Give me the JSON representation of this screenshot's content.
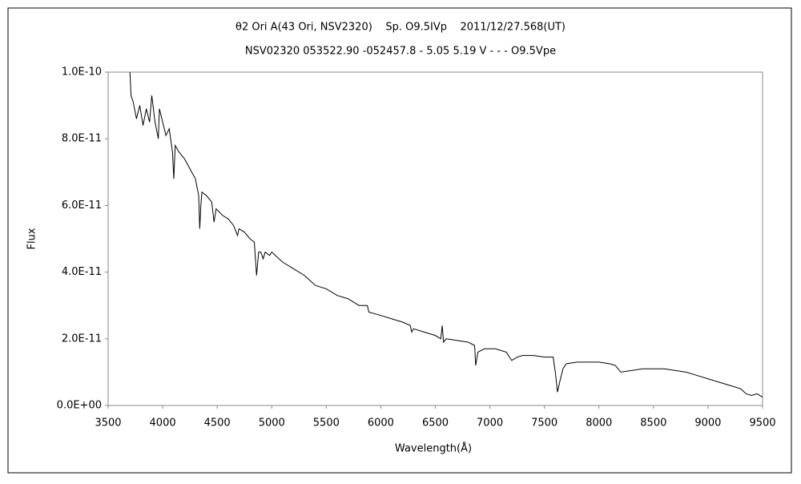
{
  "chart_data": {
    "type": "line",
    "title": "θ2 Ori A(43 Ori, NSV2320)    Sp. O9.5IVp    2011/12/27.568(UT)",
    "subtitle": "NSV02320 053522.90 -052457.8 - 5.05 5.19 V - - - O9.5Vpe",
    "x_label": "Wavelength(Å)",
    "y_label": "Flux",
    "xlim": [
      3500,
      9500
    ],
    "xticks": [
      3500,
      4000,
      4500,
      5000,
      5500,
      6000,
      6500,
      7000,
      7500,
      8000,
      8500,
      9000,
      9500
    ],
    "ylim": [
      0,
      1e-10
    ],
    "yticks": [
      {
        "value": 0,
        "label": "0.0E+00"
      },
      {
        "value": 2e-11,
        "label": "2.0E-11"
      },
      {
        "value": 4e-11,
        "label": "4.0E-11"
      },
      {
        "value": 6e-11,
        "label": "6.0E-11"
      },
      {
        "value": 8e-11,
        "label": "8.0E-11"
      },
      {
        "value": 1e-10,
        "label": "1.0E-10"
      }
    ],
    "grid": false,
    "series": [
      {
        "color": "#000000",
        "x": [
          3700,
          3710,
          3730,
          3760,
          3790,
          3820,
          3850,
          3880,
          3900,
          3930,
          3960,
          3970,
          4000,
          4030,
          4060,
          4090,
          4102,
          4115,
          4150,
          4200,
          4250,
          4300,
          4330,
          4340,
          4350,
          4360,
          4400,
          4450,
          4471,
          4490,
          4550,
          4600,
          4650,
          4686,
          4700,
          4750,
          4800,
          4840,
          4861,
          4880,
          4900,
          4921,
          4940,
          4980,
          5000,
          5100,
          5200,
          5300,
          5400,
          5500,
          5600,
          5700,
          5800,
          5876,
          5890,
          6000,
          6100,
          6200,
          6270,
          6284,
          6300,
          6400,
          6500,
          6550,
          6563,
          6575,
          6600,
          6700,
          6800,
          6860,
          6870,
          6890,
          6950,
          7050,
          7150,
          7200,
          7250,
          7300,
          7400,
          7500,
          7580,
          7600,
          7620,
          7640,
          7670,
          7700,
          7800,
          7900,
          8000,
          8100,
          8150,
          8200,
          8300,
          8400,
          8500,
          8600,
          8700,
          8800,
          8900,
          9000,
          9100,
          9200,
          9300,
          9350,
          9400,
          9450,
          9500
        ],
        "values": [
          1e-10,
          9.3e-11,
          9.1e-11,
          8.6e-11,
          9e-11,
          8.4e-11,
          8.9e-11,
          8.5e-11,
          9.3e-11,
          8.5e-11,
          8e-11,
          8.9e-11,
          8.5e-11,
          8.1e-11,
          8.3e-11,
          7.6e-11,
          6.8e-11,
          7.8e-11,
          7.6e-11,
          7.4e-11,
          7.1e-11,
          6.8e-11,
          6.3e-11,
          5.3e-11,
          6e-11,
          6.4e-11,
          6.3e-11,
          6.1e-11,
          5.5e-11,
          5.9e-11,
          5.7e-11,
          5.6e-11,
          5.4e-11,
          5.1e-11,
          5.3e-11,
          5.2e-11,
          5e-11,
          4.9e-11,
          3.9e-11,
          4.6e-11,
          4.6e-11,
          4.4e-11,
          4.6e-11,
          4.5e-11,
          4.6e-11,
          4.3e-11,
          4.1e-11,
          3.9e-11,
          3.6e-11,
          3.5e-11,
          3.3e-11,
          3.2e-11,
          3e-11,
          3e-11,
          2.8e-11,
          2.7e-11,
          2.6e-11,
          2.5e-11,
          2.4e-11,
          2.2e-11,
          2.3e-11,
          2.2e-11,
          2.1e-11,
          2e-11,
          2.4e-11,
          1.9e-11,
          2e-11,
          1.95e-11,
          1.9e-11,
          1.8e-11,
          1.2e-11,
          1.6e-11,
          1.7e-11,
          1.7e-11,
          1.6e-11,
          1.35e-11,
          1.45e-11,
          1.5e-11,
          1.5e-11,
          1.45e-11,
          1.45e-11,
          1e-11,
          4e-12,
          7e-12,
          1.1e-11,
          1.25e-11,
          1.3e-11,
          1.3e-11,
          1.3e-11,
          1.25e-11,
          1.2e-11,
          1e-11,
          1.05e-11,
          1.1e-11,
          1.1e-11,
          1.1e-11,
          1.05e-11,
          1e-11,
          9e-12,
          8e-12,
          7e-12,
          6e-12,
          5e-12,
          3.5e-12,
          3e-12,
          3.5e-12,
          2.5e-12
        ]
      }
    ]
  }
}
